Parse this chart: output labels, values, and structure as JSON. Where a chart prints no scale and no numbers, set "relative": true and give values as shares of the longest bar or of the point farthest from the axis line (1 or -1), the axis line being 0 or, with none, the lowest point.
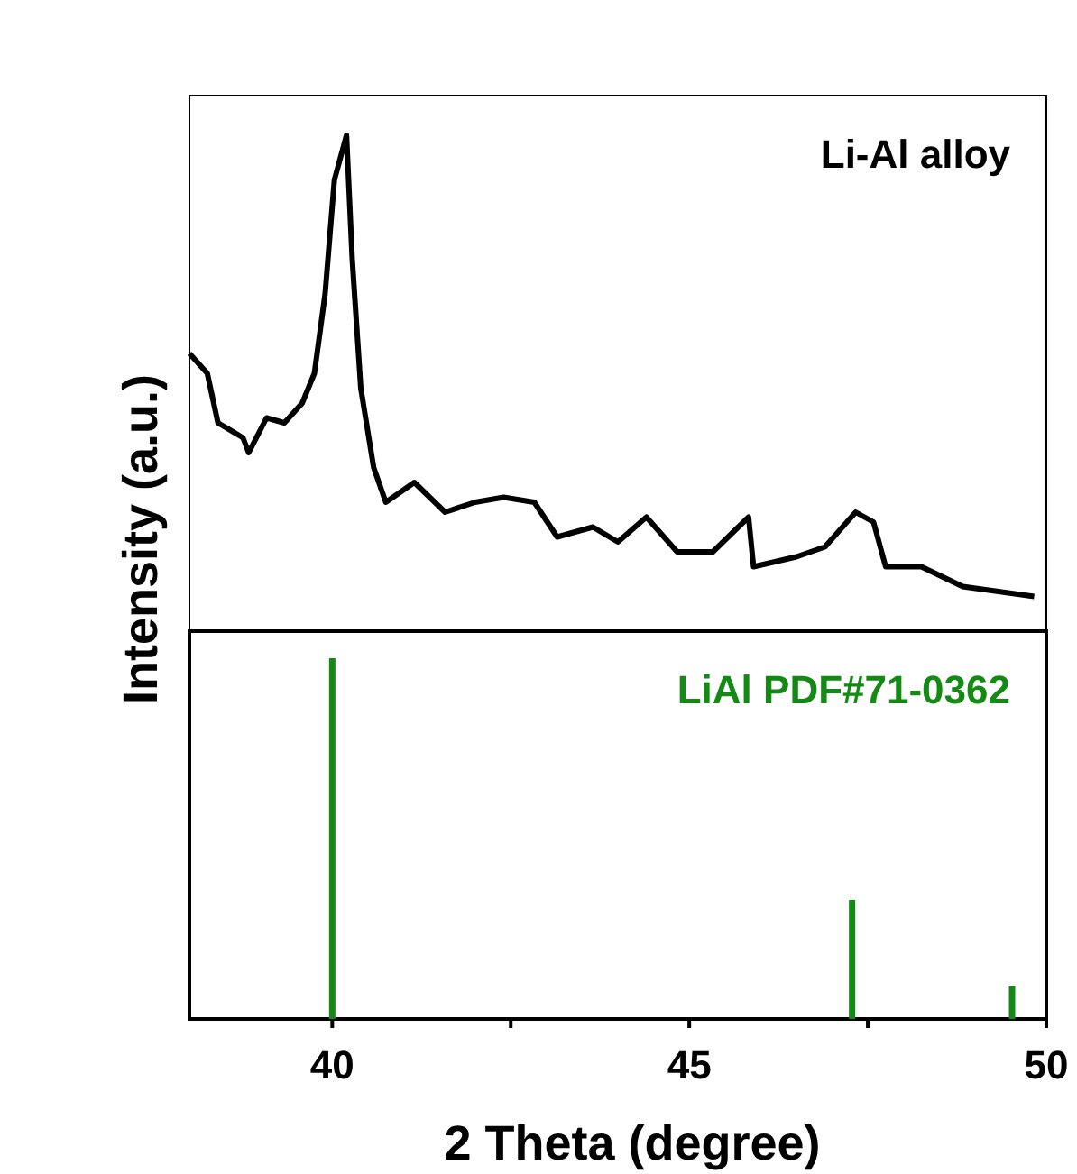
{
  "chart_data": [
    {
      "type": "line",
      "ylabel": "Intensity (a.u.)",
      "relative": true,
      "xlim": [
        38,
        50
      ],
      "tick_labels": false,
      "annotations": [
        "Li-Al alloy"
      ],
      "series": [
        {
          "color": "#000000",
          "x": [
            38.0,
            38.25,
            38.4,
            38.75,
            38.83,
            39.08,
            39.33,
            39.58,
            39.75,
            39.9,
            40.03,
            40.2,
            40.28,
            40.4,
            40.58,
            40.75,
            41.15,
            41.58,
            42.0,
            42.4,
            42.83,
            43.15,
            43.65,
            44.0,
            44.4,
            44.83,
            45.33,
            45.83,
            45.9,
            46.5,
            46.9,
            47.33,
            47.58,
            47.75,
            48.25,
            48.83,
            49.33,
            49.83
          ],
          "values": [
            0.56,
            0.52,
            0.42,
            0.39,
            0.36,
            0.43,
            0.42,
            0.46,
            0.52,
            0.68,
            0.91,
            1,
            0.75,
            0.49,
            0.33,
            0.26,
            0.3,
            0.24,
            0.26,
            0.27,
            0.26,
            0.19,
            0.21,
            0.18,
            0.23,
            0.16,
            0.16,
            0.23,
            0.13,
            0.15,
            0.17,
            0.24,
            0.22,
            0.13,
            0.13,
            0.09,
            0.08,
            0.07
          ]
        }
      ]
    },
    {
      "type": "bar",
      "xlabel": "2 Theta (degree)",
      "relative": true,
      "xlim": [
        38,
        50
      ],
      "xticks": [
        40,
        {
          "value": 42.5,
          "label": null
        },
        45,
        {
          "value": 47.5,
          "label": null
        },
        50
      ],
      "tick_labels": "x",
      "annotations": [
        "LiAl PDF#71-0362"
      ],
      "series": [
        {
          "color": "#138a13",
          "x": [
            40.0,
            47.28,
            49.52
          ],
          "values": [
            1,
            0.33,
            0.09
          ]
        }
      ]
    }
  ]
}
